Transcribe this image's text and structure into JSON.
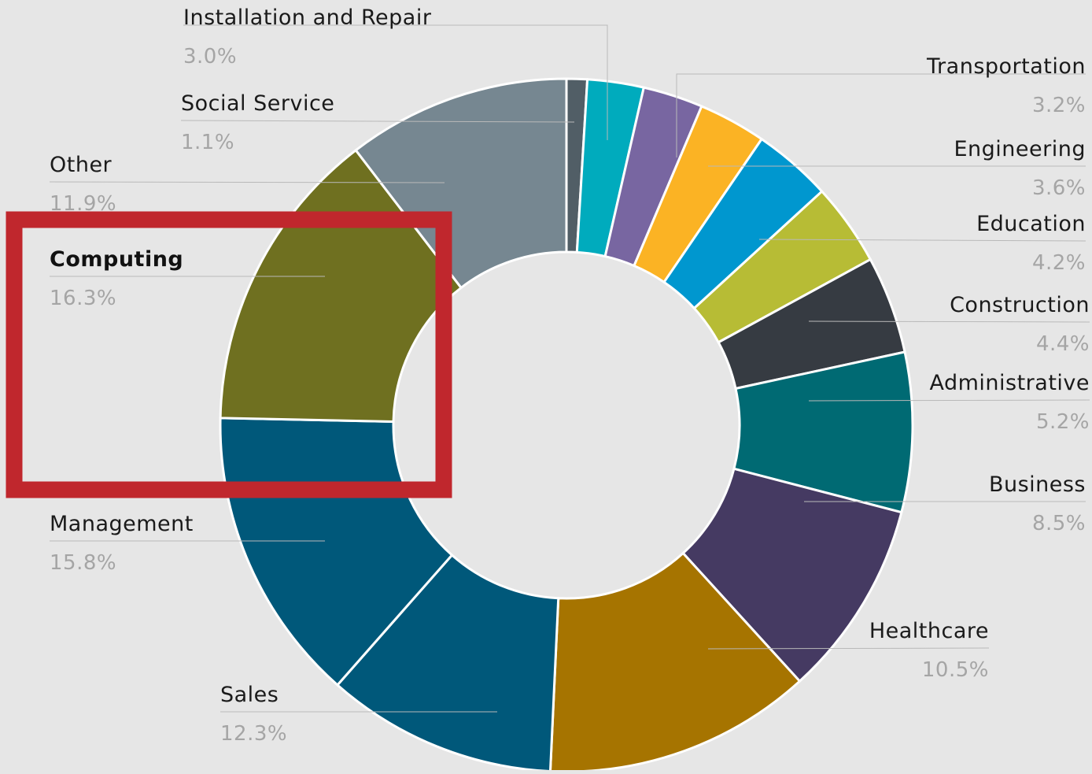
{
  "chart_data": {
    "type": "pie",
    "donut": true,
    "title": "",
    "legend": "none",
    "unit": "%",
    "start_angle_deg": 0,
    "direction": "clockwise",
    "highlight": {
      "label": "Computing",
      "color": "#c0272d"
    },
    "slices": [
      {
        "label": "Social Service",
        "value": 1.1,
        "value_label": "1.1%",
        "color": "#515e66"
      },
      {
        "label": "Installation and Repair",
        "value": 3.0,
        "value_label": "3.0%",
        "color": "#00abbd"
      },
      {
        "label": "Transportation",
        "value": 3.2,
        "value_label": "3.2%",
        "color": "#7866a1"
      },
      {
        "label": "Engineering",
        "value": 3.6,
        "value_label": "3.6%",
        "color": "#fbb324"
      },
      {
        "label": "Education",
        "value": 4.2,
        "value_label": "4.2%",
        "color": "#0097cf"
      },
      {
        "label": "Construction",
        "value": 4.4,
        "value_label": "4.4%",
        "color": "#b7bc35"
      },
      {
        "label": "Administrative",
        "value": 5.2,
        "value_label": "5.2%",
        "color": "#363b42"
      },
      {
        "label": "Business",
        "value": 8.5,
        "value_label": "8.5%",
        "color": "#006a73"
      },
      {
        "label": "Healthcare",
        "value": 10.5,
        "value_label": "10.5%",
        "color": "#453a62"
      },
      {
        "label": "",
        "value": 14.3,
        "value_label": "",
        "color": "#a67400"
      },
      {
        "label": "Sales",
        "value": 12.3,
        "value_label": "12.3%",
        "color": "#00587a"
      },
      {
        "label": "Management",
        "value": 15.8,
        "value_label": "15.8%",
        "color": "#00587a"
      },
      {
        "label": "Computing",
        "value": 16.3,
        "value_label": "16.3%",
        "color": "#6f7020"
      },
      {
        "label": "Other",
        "value": 11.9,
        "value_label": "11.9%",
        "color": "#768791"
      }
    ]
  }
}
